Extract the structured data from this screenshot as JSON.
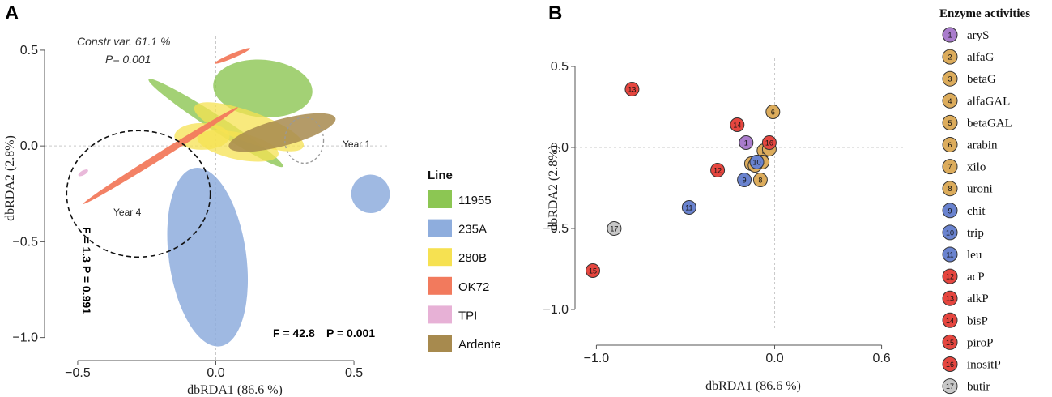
{
  "chart_data": [
    {
      "type": "scatter",
      "panel_label": "A",
      "title": "",
      "xlabel": "dbRDA1 (86.6 %)",
      "ylabel": "dbRDA2 (2.8%)",
      "xlim": [
        -0.62,
        0.62
      ],
      "ylim": [
        -1.12,
        0.58
      ],
      "x_ticks": [
        -0.5,
        0.0,
        0.5
      ],
      "x_tick_labels": [
        "−0.5",
        "0.0",
        "0.5"
      ],
      "y_ticks": [
        0.5,
        0.0,
        -0.5,
        -1.0
      ],
      "y_tick_labels": [
        "0.5",
        "0.0",
        "−0.5",
        "−1.0"
      ],
      "annotations": {
        "constr_var": "Constr var.  61.1 %",
        "constr_p": "P=  0.001",
        "f_line": "F = 42.8",
        "p_line": "P = 0.001",
        "f_vertical": "F = 1.3   P = 0.991",
        "year1": "Year 1",
        "year4": "Year 4"
      },
      "legend": {
        "title": "Line",
        "items": [
          {
            "label": "11955",
            "color": "#8cc653"
          },
          {
            "label": "235A",
            "color": "#8eaddd"
          },
          {
            "label": "280B",
            "color": "#f6e151"
          },
          {
            "label": "OK72",
            "color": "#f27a5d"
          },
          {
            "label": "TPI",
            "color": "#e7b1d6"
          },
          {
            "label": "Ardente",
            "color": "#a78a4e"
          }
        ]
      },
      "ellipses": [
        {
          "group": "235A",
          "cx": -0.03,
          "cy": -0.58,
          "rx": 0.14,
          "ry": 0.47,
          "angle": 8,
          "color": "#8eaddd",
          "opacity": 0.85
        },
        {
          "group": "235A",
          "cx": 0.56,
          "cy": -0.25,
          "rx": 0.07,
          "ry": 0.1,
          "angle": -30,
          "color": "#8eaddd",
          "opacity": 0.85
        },
        {
          "group": "11955",
          "cx": 0.17,
          "cy": 0.3,
          "rx": 0.18,
          "ry": 0.15,
          "angle": -5,
          "color": "#8cc653",
          "opacity": 0.8
        },
        {
          "group": "11955",
          "cx": 0.0,
          "cy": 0.12,
          "rx": 0.29,
          "ry": 0.04,
          "angle": -33,
          "color": "#8cc653",
          "opacity": 0.8
        },
        {
          "group": "280B",
          "cx": 0.12,
          "cy": 0.1,
          "rx": 0.21,
          "ry": 0.08,
          "angle": -20,
          "color": "#f6e151",
          "opacity": 0.75
        },
        {
          "group": "280B",
          "cx": 0.08,
          "cy": 0.0,
          "rx": 0.15,
          "ry": 0.07,
          "angle": -12,
          "color": "#f6e151",
          "opacity": 0.75
        },
        {
          "group": "280B",
          "cx": -0.05,
          "cy": 0.05,
          "rx": 0.1,
          "ry": 0.07,
          "angle": 0,
          "color": "#f6e151",
          "opacity": 0.75
        },
        {
          "group": "OK72",
          "cx": -0.2,
          "cy": -0.05,
          "rx": 0.33,
          "ry": 0.018,
          "angle": 32,
          "color": "#f27a5d",
          "opacity": 0.95
        },
        {
          "group": "OK72",
          "cx": 0.06,
          "cy": 0.47,
          "rx": 0.07,
          "ry": 0.012,
          "angle": 23,
          "color": "#f27a5d",
          "opacity": 0.95
        },
        {
          "group": "TPI",
          "cx": -0.48,
          "cy": -0.14,
          "rx": 0.02,
          "ry": 0.012,
          "angle": 30,
          "color": "#e7b1d6",
          "opacity": 0.9
        },
        {
          "group": "Ardente",
          "cx": 0.24,
          "cy": 0.07,
          "rx": 0.2,
          "ry": 0.07,
          "angle": 15,
          "color": "#a78a4e",
          "opacity": 0.85
        }
      ],
      "year_circles": [
        {
          "label": "Year 4",
          "cx": -0.28,
          "cy": -0.25,
          "rx": 0.26,
          "ry": 0.33,
          "style": "dashed"
        },
        {
          "label": "Year 1",
          "cx": 0.32,
          "cy": 0.03,
          "rx": 0.07,
          "ry": 0.12,
          "style": "dotted"
        }
      ]
    },
    {
      "type": "scatter",
      "panel_label": "B",
      "title": "",
      "xlabel": "dbRDA1 (86.6 %)",
      "ylabel": "dbRDA2 (2.8%)",
      "xlim": [
        -1.12,
        0.72
      ],
      "ylim": [
        -1.12,
        0.55
      ],
      "x_ticks": [
        -1.0,
        0.0,
        0.6
      ],
      "x_tick_labels": [
        "−1.0",
        "0.0",
        "0.6"
      ],
      "y_ticks": [
        0.5,
        0.0,
        -0.5,
        -1.0
      ],
      "y_tick_labels": [
        "0.5",
        "0.0",
        "−0.5",
        "−1.0"
      ],
      "legend": {
        "title": "Enzyme activities",
        "items": [
          {
            "n": "1",
            "label": "aryS",
            "color": "#a97ccc"
          },
          {
            "n": "2",
            "label": "alfaG",
            "color": "#dcac5c"
          },
          {
            "n": "3",
            "label": "betaG",
            "color": "#dcac5c"
          },
          {
            "n": "4",
            "label": "alfaGAL",
            "color": "#dcac5c"
          },
          {
            "n": "5",
            "label": "betaGAL",
            "color": "#dcac5c"
          },
          {
            "n": "6",
            "label": "arabin",
            "color": "#dcac5c"
          },
          {
            "n": "7",
            "label": "xilo",
            "color": "#dcac5c"
          },
          {
            "n": "8",
            "label": "uroni",
            "color": "#dcac5c"
          },
          {
            "n": "9",
            "label": "chit",
            "color": "#6a83cf"
          },
          {
            "n": "10",
            "label": "trip",
            "color": "#6a83cf"
          },
          {
            "n": "11",
            "label": "leu",
            "color": "#6a83cf"
          },
          {
            "n": "12",
            "label": "acP",
            "color": "#e5463f"
          },
          {
            "n": "13",
            "label": "alkP",
            "color": "#e5463f"
          },
          {
            "n": "14",
            "label": "bisP",
            "color": "#e5463f"
          },
          {
            "n": "15",
            "label": "piroP",
            "color": "#e5463f"
          },
          {
            "n": "16",
            "label": "inositP",
            "color": "#e5463f"
          },
          {
            "n": "17",
            "label": "butir",
            "color": "#c8c8c8"
          }
        ]
      },
      "points": [
        {
          "n": "1",
          "x": -0.16,
          "y": 0.03,
          "color": "#a97ccc"
        },
        {
          "n": "2",
          "x": -0.06,
          "y": -0.02,
          "color": "#dcac5c"
        },
        {
          "n": "3",
          "x": -0.13,
          "y": -0.1,
          "color": "#dcac5c"
        },
        {
          "n": "4",
          "x": -0.07,
          "y": -0.09,
          "color": "#dcac5c"
        },
        {
          "n": "5",
          "x": -0.11,
          "y": -0.11,
          "color": "#dcac5c"
        },
        {
          "n": "6",
          "x": -0.01,
          "y": 0.22,
          "color": "#dcac5c"
        },
        {
          "n": "7",
          "x": -0.03,
          "y": -0.01,
          "color": "#dcac5c"
        },
        {
          "n": "8",
          "x": -0.08,
          "y": -0.2,
          "color": "#dcac5c"
        },
        {
          "n": "9",
          "x": -0.17,
          "y": -0.2,
          "color": "#6a83cf"
        },
        {
          "n": "10",
          "x": -0.1,
          "y": -0.09,
          "color": "#6a83cf"
        },
        {
          "n": "11",
          "x": -0.48,
          "y": -0.37,
          "color": "#6a83cf"
        },
        {
          "n": "12",
          "x": -0.32,
          "y": -0.14,
          "color": "#e5463f"
        },
        {
          "n": "13",
          "x": -0.8,
          "y": 0.36,
          "color": "#e5463f"
        },
        {
          "n": "14",
          "x": -0.21,
          "y": 0.14,
          "color": "#e5463f"
        },
        {
          "n": "15",
          "x": -1.02,
          "y": -0.76,
          "color": "#e5463f"
        },
        {
          "n": "16",
          "x": -0.03,
          "y": 0.03,
          "color": "#e5463f"
        },
        {
          "n": "17",
          "x": -0.9,
          "y": -0.5,
          "color": "#c8c8c8"
        }
      ]
    }
  ]
}
